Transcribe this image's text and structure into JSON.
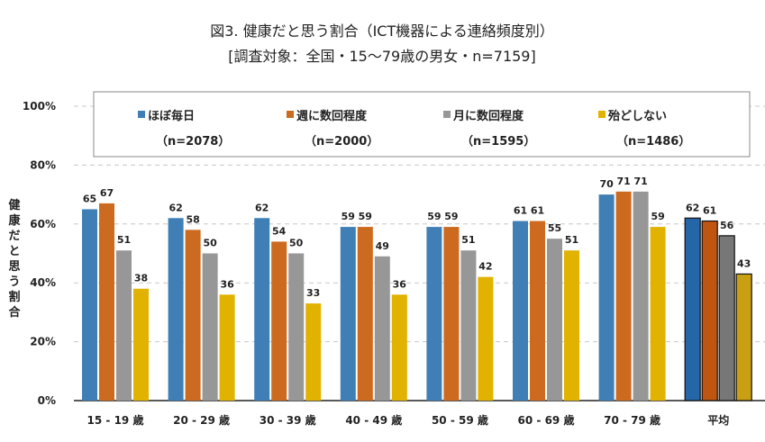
{
  "chart_data": {
    "type": "bar",
    "title": "図3. 健康だと思う割合（ICT機器による連絡頻度別）",
    "subtitle": "[調査対象：全国・15～79歳の男女・n=7159]",
    "xlabel": "",
    "ylabel": "健康だと思う割合",
    "ylim": [
      0,
      100
    ],
    "yticks": [
      "0%",
      "20%",
      "40%",
      "60%",
      "80%",
      "100%"
    ],
    "grid": true,
    "legend_placement": "top",
    "categories": [
      "15 - 19 歳",
      "20 - 29 歳",
      "30 - 39 歳",
      "40 - 49 歳",
      "50 - 59 歳",
      "60 - 69 歳",
      "70 - 79 歳",
      "平均"
    ],
    "series": [
      {
        "name": "ほぼ毎日",
        "n": "（n=2078）",
        "color": "#3f7fb5",
        "avg_color": "#2566a8",
        "values": [
          65,
          62,
          62,
          59,
          59,
          61,
          70,
          62
        ]
      },
      {
        "name": "週に数回程度",
        "n": "（n=2000）",
        "color": "#cc6a1f",
        "avg_color": "#bf5510",
        "values": [
          67,
          58,
          54,
          59,
          59,
          61,
          71,
          61
        ]
      },
      {
        "name": "月に数回程度",
        "n": "（n=1595）",
        "color": "#979797",
        "avg_color": "#777777",
        "values": [
          51,
          50,
          50,
          49,
          51,
          55,
          71,
          56
        ]
      },
      {
        "name": "殆どしない",
        "n": "（n=1486）",
        "color": "#e2b200",
        "avg_color": "#c9a014",
        "values": [
          38,
          36,
          33,
          36,
          42,
          51,
          59,
          43
        ]
      }
    ]
  }
}
